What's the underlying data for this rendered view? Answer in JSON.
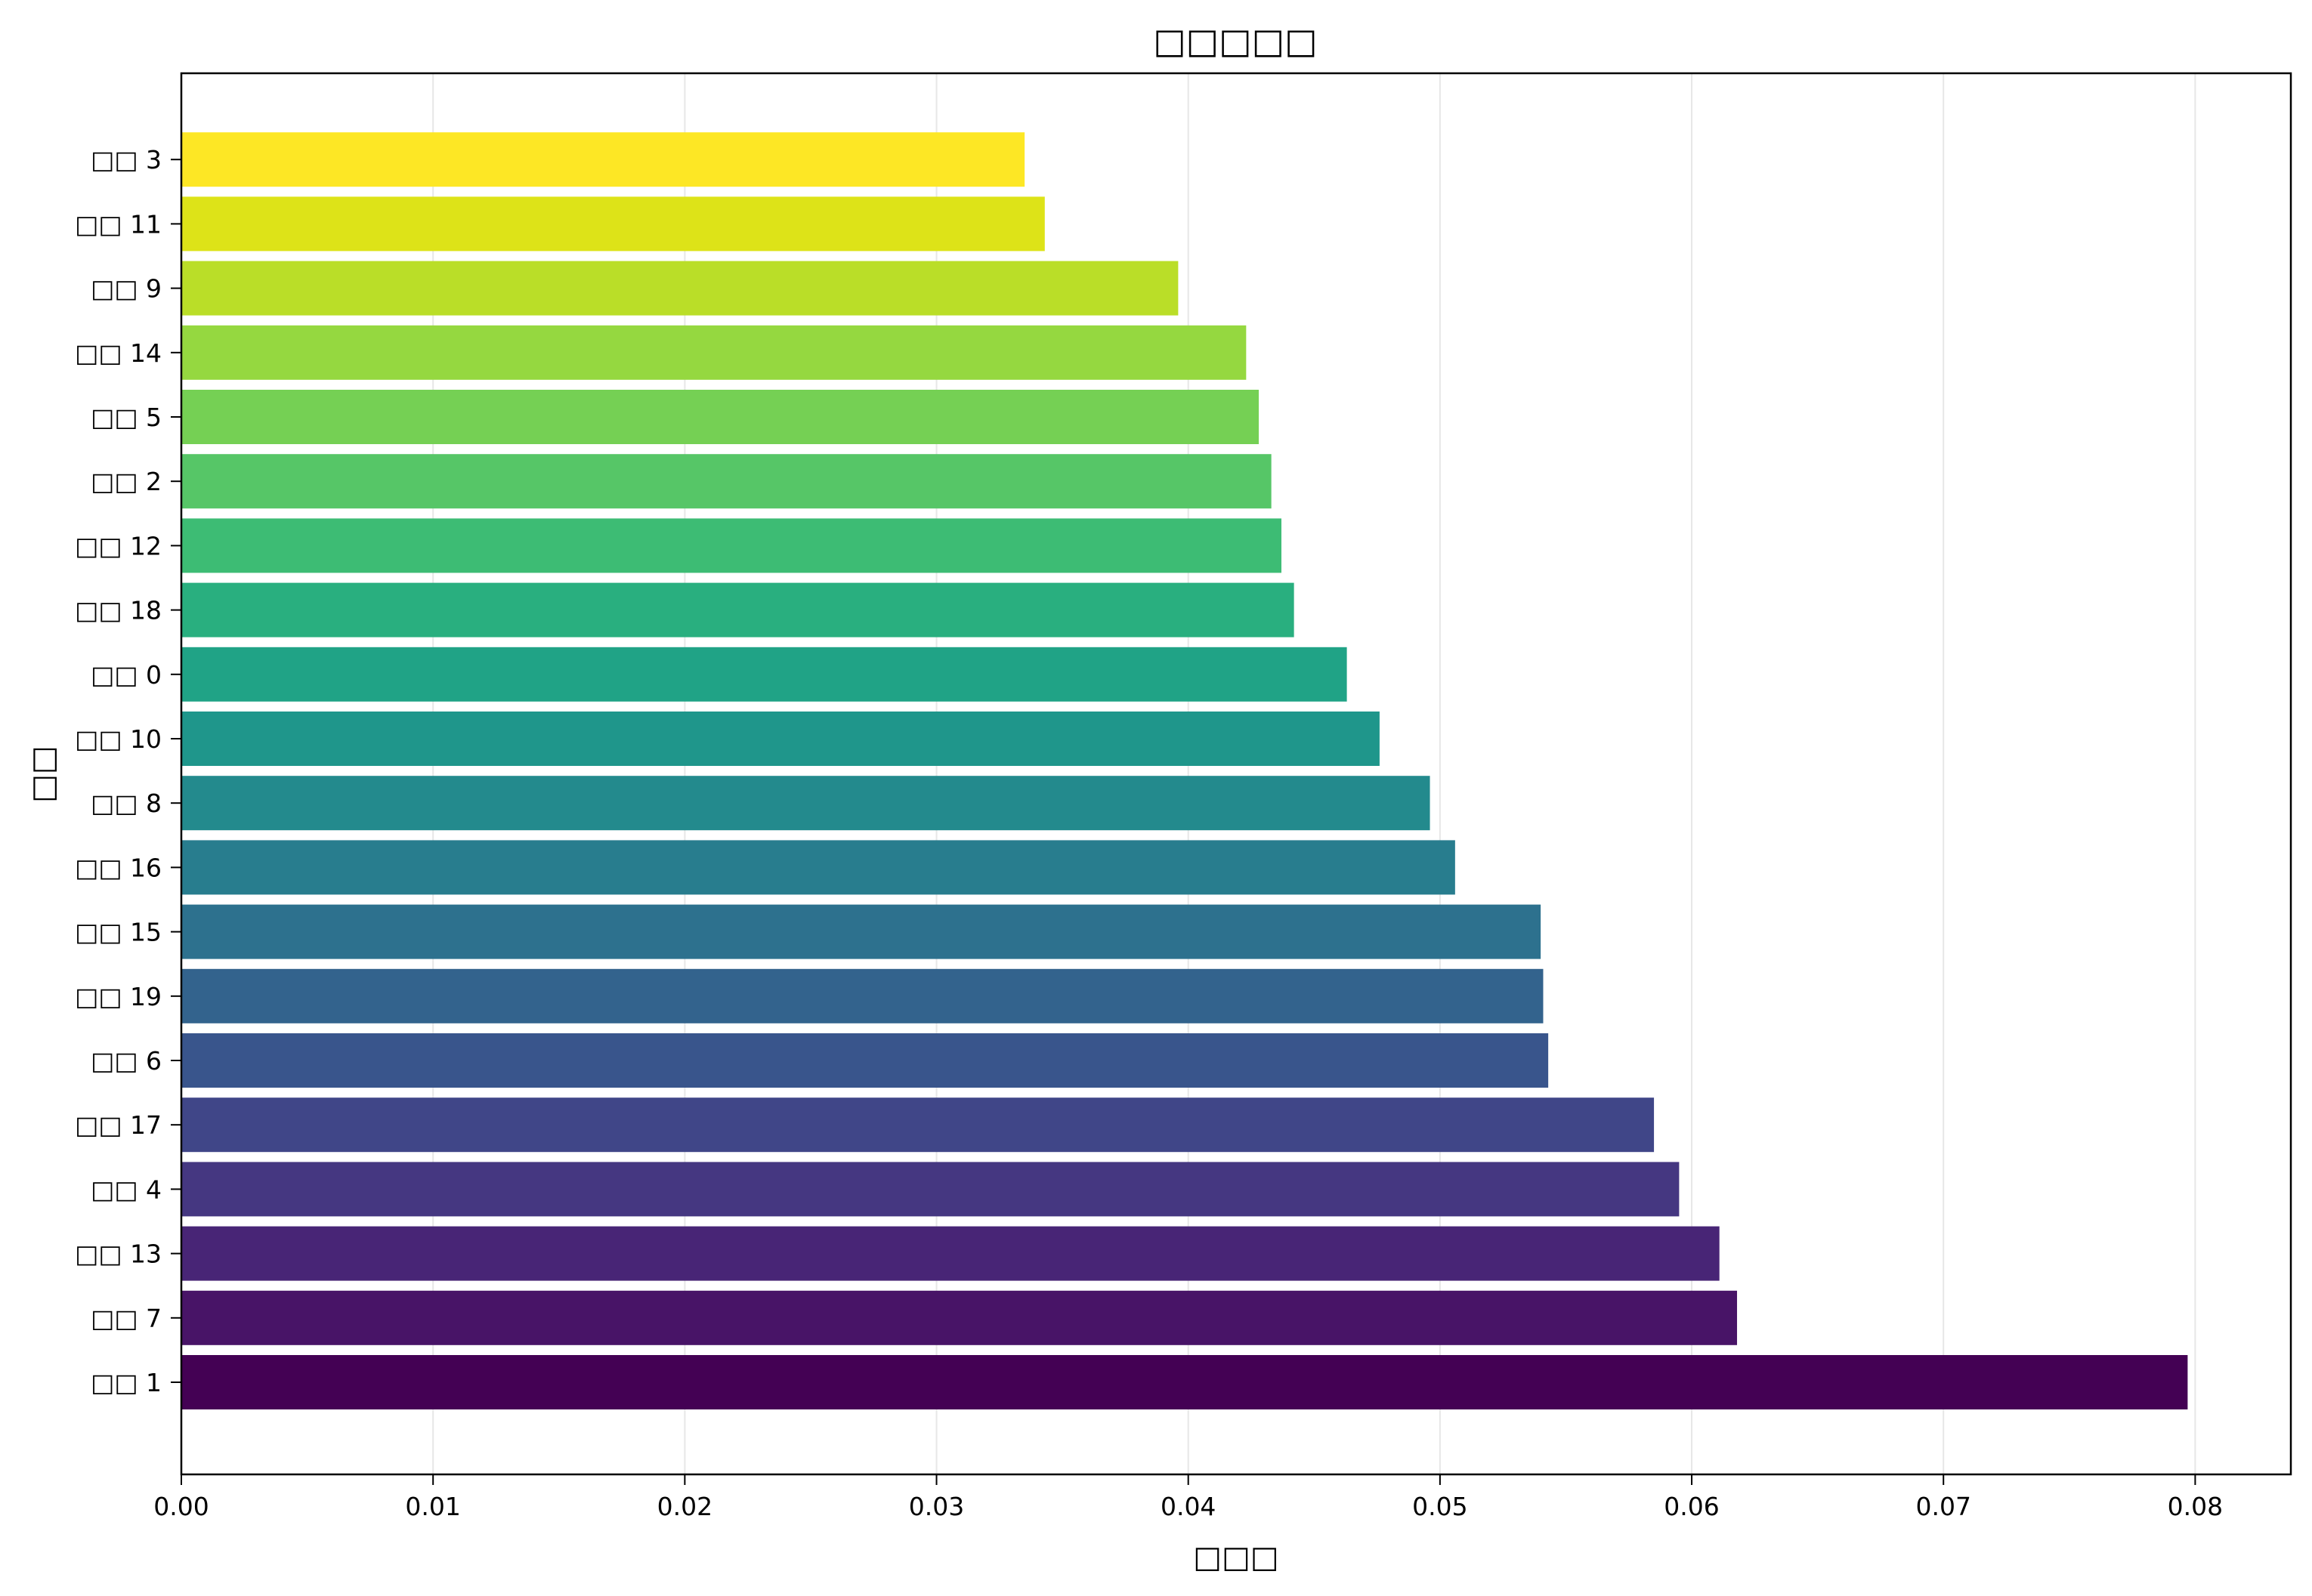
{
  "chart_data": {
    "type": "bar",
    "orientation": "horizontal",
    "title": "□□□□□",
    "xlabel": "□□□",
    "ylabel": "□□",
    "xlim": [
      0,
      0.0838
    ],
    "x_ticks": [
      "0.00",
      "0.01",
      "0.02",
      "0.03",
      "0.04",
      "0.05",
      "0.06",
      "0.07",
      "0.08"
    ],
    "x_tick_values": [
      0,
      0.01,
      0.02,
      0.03,
      0.04,
      0.05,
      0.06,
      0.07,
      0.08
    ],
    "grid": "vertical",
    "colormap": "viridis",
    "categories": [
      "□□ 1",
      "□□ 7",
      "□□ 13",
      "□□ 4",
      "□□ 17",
      "□□ 6",
      "□□ 19",
      "□□ 15",
      "□□ 16",
      "□□ 8",
      "□□ 10",
      "□□ 0",
      "□□ 18",
      "□□ 12",
      "□□ 2",
      "□□ 5",
      "□□ 14",
      "□□ 9",
      "□□ 11",
      "□□ 3"
    ],
    "values": [
      0.0797,
      0.0618,
      0.0611,
      0.0595,
      0.0585,
      0.0543,
      0.0541,
      0.054,
      0.0506,
      0.0496,
      0.0476,
      0.0463,
      0.0442,
      0.0437,
      0.0433,
      0.0428,
      0.0423,
      0.0396,
      0.0343,
      0.0335
    ],
    "colors": [
      "#440154",
      "#481467",
      "#482576",
      "#453781",
      "#404688",
      "#39558c",
      "#33638d",
      "#2d718e",
      "#287d8e",
      "#238a8d",
      "#1f968b",
      "#20a386",
      "#29af7f",
      "#3dbc74",
      "#56c667",
      "#75d054",
      "#95d840",
      "#bade28",
      "#dde318",
      "#fde725"
    ]
  }
}
